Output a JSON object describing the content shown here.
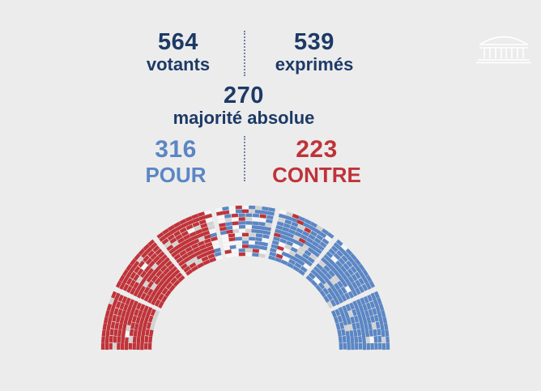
{
  "stats": {
    "votants": {
      "value": "564",
      "label": "votants"
    },
    "exprimes": {
      "value": "539",
      "label": "exprimés"
    },
    "majorite": {
      "value": "270",
      "label": "majorité absolue"
    },
    "pour": {
      "value": "316",
      "label": "POUR"
    },
    "contre": {
      "value": "223",
      "label": "CONTRE"
    }
  },
  "colors": {
    "pour": "#5b86c4",
    "contre": "#bf3339",
    "abstention": "#d2d2d2",
    "absent": "#f6f6f6",
    "navy": "#1d3a66"
  },
  "logo": {
    "icon": "assemblee-nationale-building-icon"
  },
  "vote_counts": {
    "pour": 316,
    "contre": 223,
    "abstention": 25
  }
}
